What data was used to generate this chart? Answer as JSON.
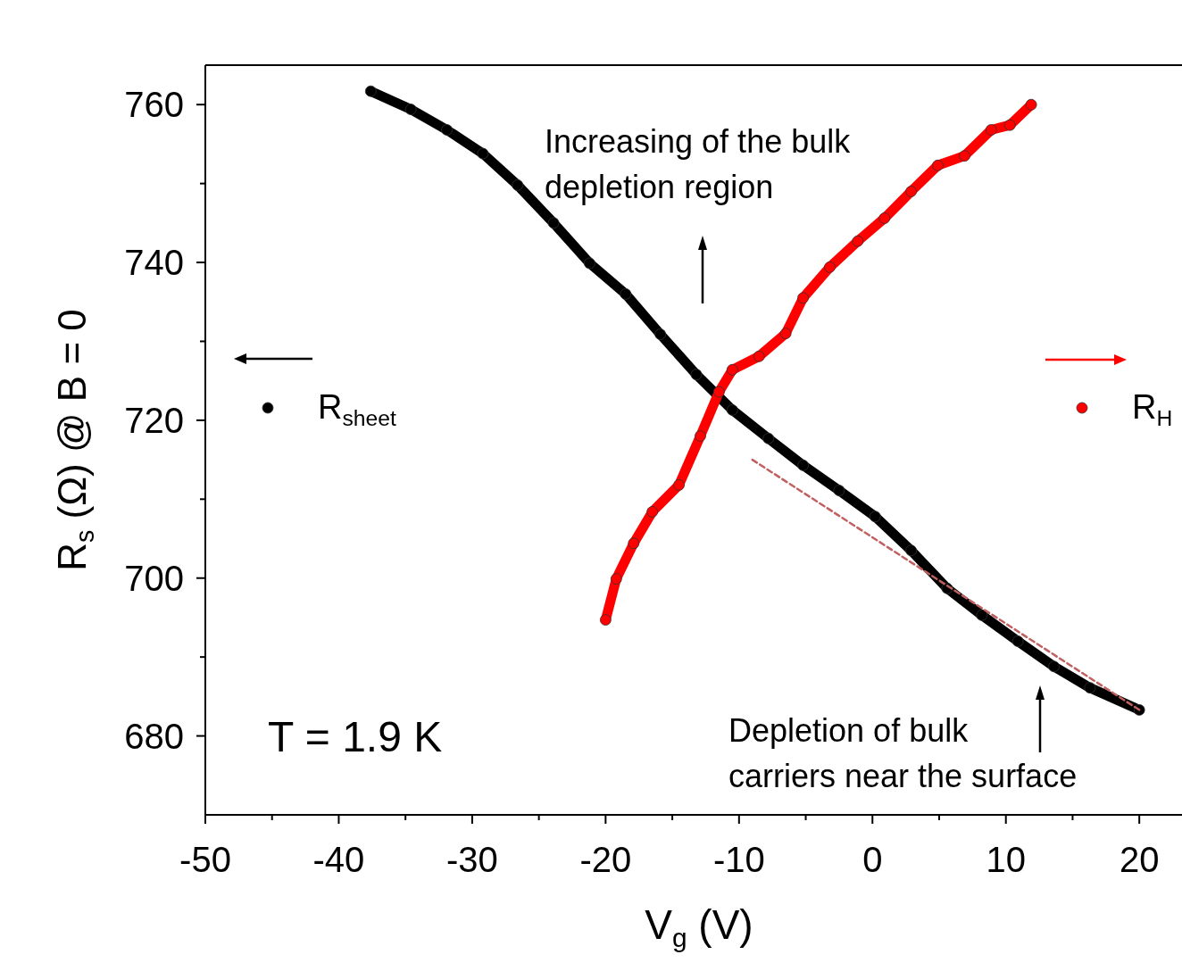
{
  "chart_data": {
    "type": "line",
    "xlabel": "V$_{g}$ (V)",
    "ylabel": "R$_{s}$ (Ω) @  B = 0",
    "xlim": [
      -50,
      23.2
    ],
    "xticks": [
      -50,
      -40,
      -30,
      -20,
      -10,
      0,
      10,
      20
    ],
    "ylim": [
      670,
      765
    ],
    "yticks": [
      680,
      700,
      720,
      740,
      760
    ],
    "grid": false,
    "legend": "left",
    "marker": "circle",
    "series": [
      {
        "name": "R$_{sheet}$",
        "color": "#000000",
        "x": [
          -37.6,
          -34.6,
          -31.9,
          -29.2,
          -26.6,
          -23.9,
          -21.2,
          -18.5,
          -15.9,
          -13.2,
          -10.5,
          -7.8,
          -5.2,
          -2.5,
          0.2,
          2.9,
          5.6,
          8.2,
          10.9,
          13.6,
          16.3,
          20.0
        ],
        "values": [
          761.7,
          759.4,
          756.8,
          753.8,
          749.8,
          745.0,
          739.9,
          736.0,
          730.9,
          725.8,
          721.3,
          717.7,
          714.3,
          711.1,
          707.8,
          703.5,
          698.7,
          695.3,
          692.0,
          688.8,
          686.1,
          683.3
        ]
      },
      {
        "name": "R$_{H}$",
        "color": "#ff0000",
        "x": [
          -20.0,
          -19.2,
          -17.9,
          -16.5,
          -14.5,
          -12.9,
          -11.5,
          -10.5,
          -8.5,
          -6.5,
          -5.2,
          -3.2,
          -1.1,
          0.9,
          2.9,
          4.9,
          6.9,
          8.9,
          10.3,
          11.9
        ],
        "values": [
          694.7,
          699.9,
          704.4,
          708.4,
          711.8,
          718.0,
          723.6,
          726.4,
          728.1,
          731.0,
          735.5,
          739.4,
          742.7,
          745.6,
          749.0,
          752.3,
          753.5,
          756.8,
          757.4,
          760.0
        ]
      },
      {
        "type": "line",
        "color": "#c06060",
        "marker": "none",
        "line_style": "dashed",
        "x": [
          -9.0,
          20.0
        ],
        "values": [
          715.0,
          683.3
        ]
      }
    ],
    "annotations": [
      "Increasing of the bulk\ndepletion region",
      "Depletion of bulk\ncarriers near the surface",
      "T = 1.9 K"
    ]
  }
}
